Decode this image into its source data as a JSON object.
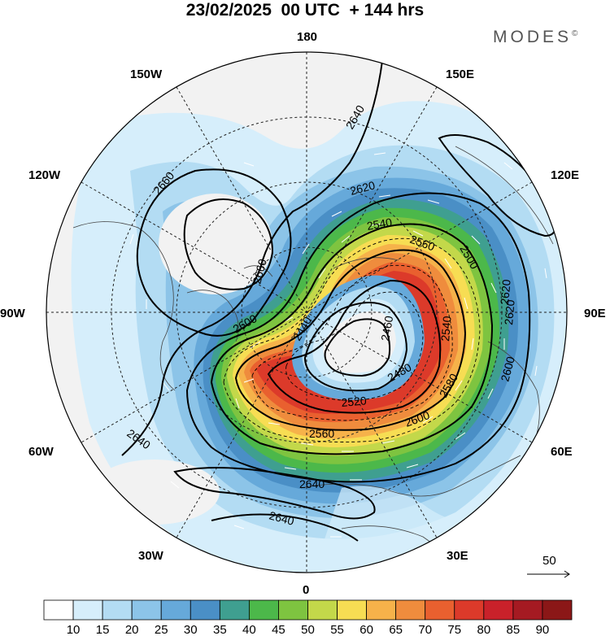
{
  "title": "23/02/2025  00 UTC  + 144 hrs",
  "brand": "MODES",
  "brand_mark": "©",
  "longitude_labels": {
    "top": "180",
    "w150": "150W",
    "e150": "150E",
    "w120": "120W",
    "e120": "120E",
    "w90": "90W",
    "e90": "90E",
    "w60": "60W",
    "e60": "60E",
    "w30": "30W",
    "e30": "30E",
    "bottom": "0"
  },
  "contour_labels": [
    "2640",
    "2660",
    "2620",
    "2540",
    "2560",
    "2500",
    "2660",
    "2600",
    "2440",
    "2460",
    "2540",
    "2620",
    "2480",
    "2580",
    "2520",
    "2600",
    "2560",
    "2600",
    "2640",
    "2640",
    "2640",
    "2620"
  ],
  "vector_reference": "50",
  "colorbar": {
    "ticks": [
      "10",
      "15",
      "20",
      "25",
      "30",
      "35",
      "40",
      "45",
      "50",
      "55",
      "60",
      "65",
      "70",
      "75",
      "80",
      "85",
      "90"
    ],
    "colors": [
      "#ffffff",
      "#d6eefb",
      "#b3dcf3",
      "#8cc4e8",
      "#66a9da",
      "#4a8fc6",
      "#3f9f90",
      "#4cb84a",
      "#7ec440",
      "#c3d84a",
      "#f7dd53",
      "#f6b24a",
      "#ef8c3d",
      "#e9602f",
      "#dc3a2a",
      "#c9212a",
      "#a51a22",
      "#8b1717"
    ]
  }
}
